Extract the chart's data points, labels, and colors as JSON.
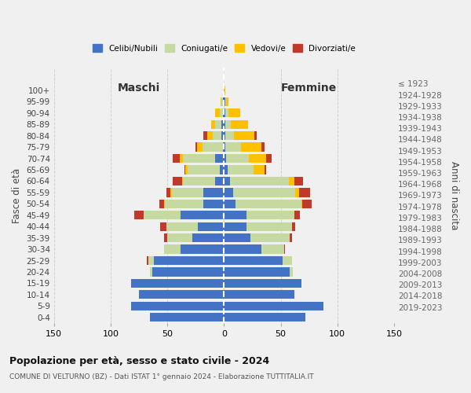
{
  "age_groups": [
    "0-4",
    "5-9",
    "10-14",
    "15-19",
    "20-24",
    "25-29",
    "30-34",
    "35-39",
    "40-44",
    "45-49",
    "50-54",
    "55-59",
    "60-64",
    "65-69",
    "70-74",
    "75-79",
    "80-84",
    "85-89",
    "90-94",
    "95-99",
    "100+"
  ],
  "birth_years": [
    "2019-2023",
    "2014-2018",
    "2009-2013",
    "2004-2008",
    "1999-2003",
    "1994-1998",
    "1989-1993",
    "1984-1988",
    "1979-1983",
    "1974-1978",
    "1969-1973",
    "1964-1968",
    "1959-1963",
    "1954-1958",
    "1949-1953",
    "1944-1948",
    "1939-1943",
    "1934-1938",
    "1929-1933",
    "1924-1928",
    "≤ 1923"
  ],
  "maschi": {
    "celibi": [
      65,
      82,
      75,
      82,
      63,
      62,
      38,
      28,
      23,
      38,
      18,
      18,
      8,
      4,
      8,
      1,
      2,
      2,
      1,
      1,
      0
    ],
    "coniugati": [
      0,
      0,
      0,
      0,
      2,
      5,
      15,
      22,
      28,
      33,
      34,
      28,
      28,
      28,
      28,
      18,
      8,
      6,
      3,
      1,
      0
    ],
    "vedovi": [
      0,
      0,
      0,
      0,
      0,
      0,
      0,
      0,
      0,
      0,
      1,
      1,
      1,
      2,
      3,
      5,
      5,
      3,
      4,
      1,
      0
    ],
    "divorziati": [
      0,
      0,
      0,
      0,
      0,
      1,
      0,
      3,
      5,
      8,
      4,
      4,
      8,
      1,
      6,
      1,
      3,
      0,
      0,
      0,
      0
    ]
  },
  "femmine": {
    "nubili": [
      72,
      88,
      62,
      68,
      58,
      52,
      33,
      23,
      20,
      20,
      10,
      8,
      5,
      3,
      2,
      1,
      1,
      1,
      1,
      1,
      0
    ],
    "coniugate": [
      0,
      0,
      0,
      0,
      3,
      8,
      20,
      35,
      40,
      42,
      58,
      55,
      52,
      23,
      20,
      14,
      8,
      5,
      3,
      1,
      0
    ],
    "vedove": [
      0,
      0,
      0,
      0,
      0,
      0,
      0,
      0,
      0,
      0,
      1,
      3,
      5,
      10,
      15,
      18,
      18,
      15,
      10,
      2,
      1
    ],
    "divorziate": [
      0,
      0,
      0,
      0,
      0,
      0,
      1,
      2,
      3,
      5,
      8,
      10,
      8,
      1,
      5,
      3,
      2,
      0,
      0,
      0,
      0
    ]
  },
  "colors": {
    "celibi": "#4472C4",
    "coniugati": "#c5d9a0",
    "vedovi": "#ffc000",
    "divorziati": "#c0392b"
  },
  "title": "Popolazione per età, sesso e stato civile - 2024",
  "subtitle": "COMUNE DI VELTURNO (BZ) - Dati ISTAT 1° gennaio 2024 - Elaborazione TUTTITALIA.IT",
  "xlabel_left": "Maschi",
  "xlabel_right": "Femmine",
  "ylabel_left": "Fasce di età",
  "ylabel_right": "Anni di nascita",
  "xlim": 150,
  "legend_labels": [
    "Celibi/Nubili",
    "Coniugati/e",
    "Vedovi/e",
    "Divorziati/e"
  ],
  "legend_colors": [
    "#4472C4",
    "#c5d9a0",
    "#ffc000",
    "#c0392b"
  ],
  "bg_color": "#f0f0f0",
  "grid_color": "#cccccc"
}
